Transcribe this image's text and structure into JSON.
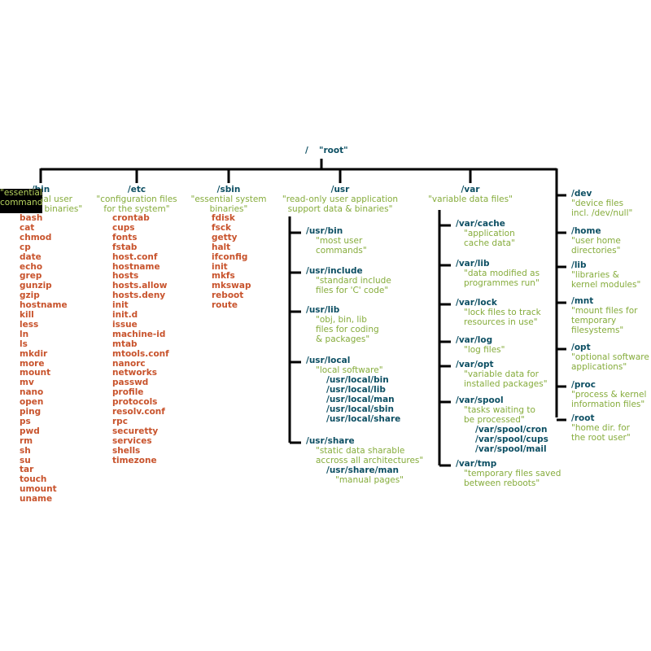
{
  "root": {
    "path": "/",
    "desc": "\"root\""
  },
  "bin": {
    "path": "/bin",
    "desc": [
      "\"essential user",
      "command binaries\""
    ],
    "tooltip": [
      "\"essential",
      "command"
    ],
    "files": [
      "bash",
      "cat",
      "chmod",
      "cp",
      "date",
      "echo",
      "grep",
      "gunzip",
      "gzip",
      "hostname",
      "kill",
      "less",
      "ln",
      "ls",
      "mkdir",
      "more",
      "mount",
      "mv",
      "nano",
      "open",
      "ping",
      "ps",
      "pwd",
      "rm",
      "sh",
      "su",
      "tar",
      "touch",
      "umount",
      "uname"
    ]
  },
  "etc": {
    "path": "/etc",
    "desc": [
      "\"configuration files",
      "for the system\""
    ],
    "files": [
      "crontab",
      "cups",
      "fonts",
      "fstab",
      "host.conf",
      "hostname",
      "hosts",
      "hosts.allow",
      "hosts.deny",
      "init",
      "init.d",
      "issue",
      "machine-id",
      "mtab",
      "mtools.conf",
      "nanorc",
      "networks",
      "passwd",
      "profile",
      "protocols",
      "resolv.conf",
      "rpc",
      "securetty",
      "services",
      "shells",
      "timezone"
    ]
  },
  "sbin": {
    "path": "/sbin",
    "desc": [
      "\"essential system",
      "binaries\""
    ],
    "files": [
      "fdisk",
      "fsck",
      "getty",
      "halt",
      "ifconfig",
      "init",
      "mkfs",
      "mkswap",
      "reboot",
      "route"
    ]
  },
  "usr": {
    "path": "/usr",
    "desc": [
      "\"read-only user application",
      "support data & binaries\""
    ],
    "children": [
      {
        "path": "/usr/bin",
        "desc": [
          "\"most user",
          "commands\""
        ],
        "sub": []
      },
      {
        "path": "/usr/include",
        "desc": [
          "\"standard include",
          "files for 'C' code\""
        ],
        "sub": []
      },
      {
        "path": "/usr/lib",
        "desc": [
          "\"obj, bin, lib",
          "files for coding",
          "& packages\""
        ],
        "sub": []
      },
      {
        "path": "/usr/local",
        "desc": [
          "\"local software\""
        ],
        "sub": [
          "/usr/local/bin",
          "/usr/local/lib",
          "/usr/local/man",
          "/usr/local/sbin",
          "/usr/local/share"
        ]
      },
      {
        "path": "/usr/share",
        "desc": [
          "\"static data sharable",
          "accross all architectures\""
        ],
        "sub": [
          "/usr/share/man"
        ],
        "subdesc": "\"manual pages\""
      }
    ]
  },
  "var": {
    "path": "/var",
    "desc": [
      "\"variable data files\""
    ],
    "children": [
      {
        "path": "/var/cache",
        "desc": [
          "\"application",
          "cache data\""
        ],
        "sub": []
      },
      {
        "path": "/var/lib",
        "desc": [
          "\"data modified as",
          "programmes run\""
        ],
        "sub": []
      },
      {
        "path": "/var/lock",
        "desc": [
          "\"lock files to track",
          "resources in use\""
        ],
        "sub": []
      },
      {
        "path": "/var/log",
        "desc": [
          "\"log files\""
        ],
        "sub": []
      },
      {
        "path": "/var/opt",
        "desc": [
          "\"variable data for",
          "installed packages\""
        ],
        "sub": []
      },
      {
        "path": "/var/spool",
        "desc": [
          "\"tasks waiting to",
          "be processed\""
        ],
        "sub": [
          "/var/spool/cron",
          "/var/spool/cups",
          "/var/spool/mail"
        ]
      },
      {
        "path": "/var/tmp",
        "desc": [
          "\"temporary files saved",
          "between reboots\""
        ],
        "sub": []
      }
    ]
  },
  "others": [
    {
      "path": "/dev",
      "desc": [
        "\"device files",
        "incl. /dev/null\""
      ]
    },
    {
      "path": "/home",
      "desc": [
        "\"user home",
        "directories\""
      ]
    },
    {
      "path": "/lib",
      "desc": [
        "\"libraries &",
        "kernel modules\""
      ]
    },
    {
      "path": "/mnt",
      "desc": [
        "\"mount files for",
        "temporary",
        "filesystems\""
      ]
    },
    {
      "path": "/opt",
      "desc": [
        "\"optional software",
        "applications\""
      ]
    },
    {
      "path": "/proc",
      "desc": [
        "\"process & kernel",
        "information files\""
      ]
    },
    {
      "path": "/root",
      "desc": [
        "\"home dir. for",
        "the root user\""
      ]
    }
  ],
  "colors": {
    "dir": "#0d4f63",
    "desc": "#86ac3c",
    "file": "#c8532c",
    "line": "#000000",
    "tooltip_text": "#b7d45e"
  }
}
